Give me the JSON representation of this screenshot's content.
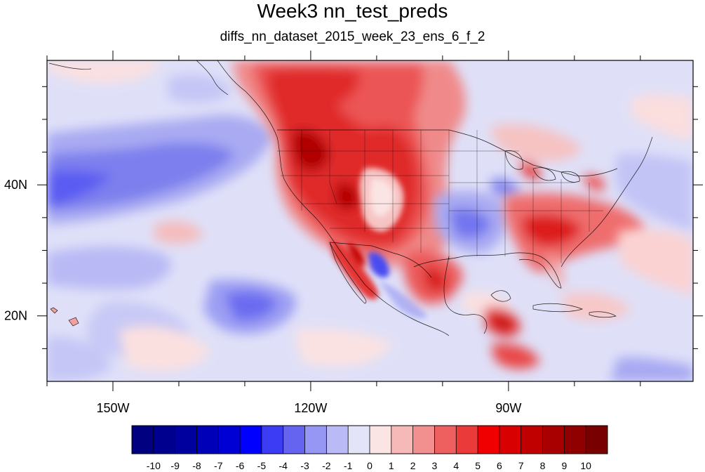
{
  "title": "Week3 nn_test_preds",
  "subtitle": "diffs_nn_dataset_2015_week_23_ens_6_f_2",
  "map": {
    "lon_range": [
      -160,
      -62
    ],
    "lat_range": [
      10,
      59
    ],
    "x_ticks": [
      {
        "lon": -150,
        "label": "150W"
      },
      {
        "lon": -120,
        "label": "120W"
      },
      {
        "lon": -90,
        "label": "90W"
      }
    ],
    "y_ticks": [
      {
        "lat": 40,
        "label": "40N"
      },
      {
        "lat": 20,
        "label": "20N"
      }
    ]
  },
  "colorbar": {
    "labels": [
      "-10",
      "-9",
      "-8",
      "-7",
      "-6",
      "-5",
      "-4",
      "-3",
      "-2",
      "-1",
      "0",
      "1",
      "2",
      "3",
      "4",
      "5",
      "6",
      "7",
      "8",
      "9",
      "10"
    ],
    "colors": [
      "#000080",
      "#00008f",
      "#00009e",
      "#0000b8",
      "#0000d4",
      "#0000ff",
      "#3c3cf5",
      "#6464f0",
      "#9696f5",
      "#babaf7",
      "#e4e4f8",
      "#fbe4e4",
      "#f7b8b8",
      "#f29090",
      "#ee6060",
      "#ea3a3a",
      "#f00000",
      "#d80000",
      "#c00000",
      "#a80000",
      "#900000",
      "#780000"
    ]
  },
  "legend_title": ""
}
